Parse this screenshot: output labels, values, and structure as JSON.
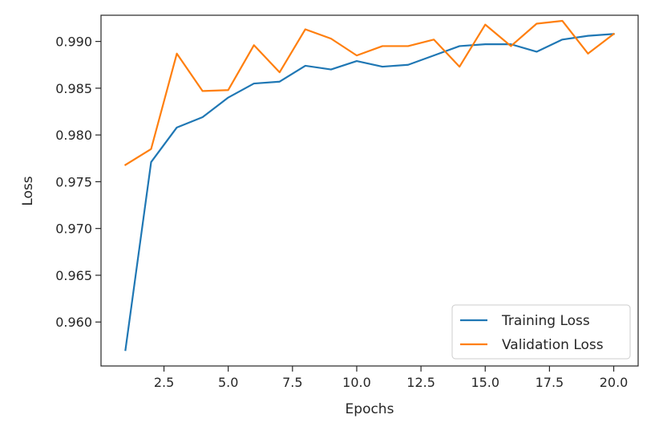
{
  "chart_data": {
    "type": "line",
    "title": "",
    "xlabel": "Epochs",
    "ylabel": "Loss",
    "xlim": [
      0.05,
      20.95
    ],
    "ylim": [
      0.9553,
      0.9928
    ],
    "x_ticks": [
      2.5,
      5.0,
      7.5,
      10.0,
      12.5,
      15.0,
      17.5,
      20.0
    ],
    "x_tick_labels": [
      "2.5",
      "5.0",
      "7.5",
      "10.0",
      "12.5",
      "15.0",
      "17.5",
      "20.0"
    ],
    "y_ticks": [
      0.96,
      0.965,
      0.97,
      0.975,
      0.98,
      0.985,
      0.99
    ],
    "y_tick_labels": [
      "0.960",
      "0.965",
      "0.970",
      "0.975",
      "0.980",
      "0.985",
      "0.990"
    ],
    "grid": false,
    "legend_position": "lower-right",
    "x": [
      1,
      2,
      3,
      4,
      5,
      6,
      7,
      8,
      9,
      10,
      11,
      12,
      13,
      14,
      15,
      16,
      17,
      18,
      19,
      20
    ],
    "series": [
      {
        "name": "Training Loss",
        "color": "#1f77b4",
        "values": [
          0.957,
          0.9771,
          0.9808,
          0.9819,
          0.984,
          0.9855,
          0.9857,
          0.9874,
          0.987,
          0.9879,
          0.9873,
          0.9875,
          0.9885,
          0.9895,
          0.9897,
          0.9897,
          0.9889,
          0.9902,
          0.9906,
          0.9908
        ]
      },
      {
        "name": "Validation Loss",
        "color": "#ff7f0e",
        "values": [
          0.9768,
          0.9785,
          0.9887,
          0.9847,
          0.9848,
          0.9896,
          0.9867,
          0.9913,
          0.9903,
          0.9885,
          0.9895,
          0.9895,
          0.9902,
          0.9873,
          0.9918,
          0.9895,
          0.9919,
          0.9922,
          0.9887,
          0.9908
        ]
      }
    ]
  }
}
